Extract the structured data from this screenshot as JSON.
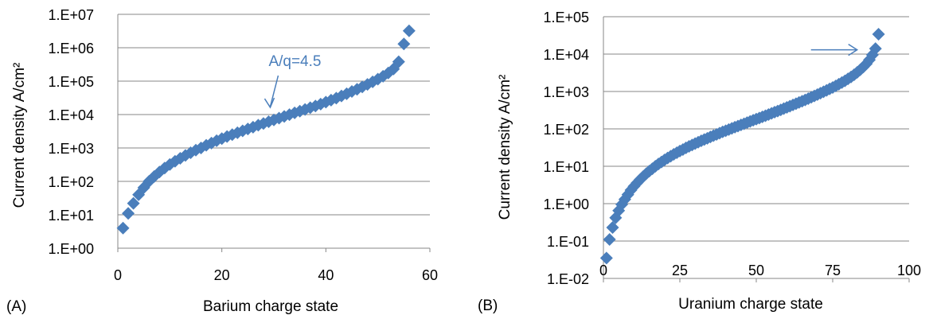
{
  "colors": {
    "series": "#4a7ebb",
    "grid": "#878787",
    "axis": "#878787"
  },
  "chart_data": [
    {
      "type": "scatter",
      "panel_label": "(A)",
      "xlabel": "Barium charge state",
      "ylabel": "Current density A/cm²",
      "xlim": [
        0,
        60
      ],
      "ylim": [
        1,
        10000000
      ],
      "yscale": "log",
      "grid": "horizontal",
      "x_ticks": [
        "0",
        "20",
        "40",
        "60"
      ],
      "y_ticks": [
        "1.E+00",
        "1.E+01",
        "1.E+02",
        "1.E+03",
        "1.E+04",
        "1.E+05",
        "1.E+06",
        "1.E+07"
      ],
      "annotation": {
        "text": "A/q=4.5",
        "x": 29,
        "y": 8000
      },
      "series": [
        {
          "marker": "diamond",
          "x": [
            1,
            2,
            3,
            4,
            5,
            6,
            7,
            8,
            9,
            10,
            11,
            12,
            13,
            14,
            15,
            16,
            17,
            18,
            19,
            20,
            21,
            22,
            23,
            24,
            25,
            26,
            27,
            28,
            29,
            30,
            31,
            32,
            33,
            34,
            35,
            36,
            37,
            38,
            39,
            40,
            41,
            42,
            43,
            44,
            45,
            46,
            47,
            48,
            49,
            50,
            51,
            52,
            53,
            54,
            55,
            56
          ],
          "y": [
            4,
            11,
            22,
            40,
            65,
            100,
            140,
            190,
            250,
            320,
            400,
            490,
            600,
            720,
            860,
            1000,
            1200,
            1400,
            1650,
            1900,
            2200,
            2500,
            2850,
            3250,
            3700,
            4200,
            4800,
            5400,
            6100,
            6900,
            7800,
            8800,
            9900,
            11200,
            12600,
            14200,
            16000,
            18000,
            20500,
            23500,
            27000,
            31000,
            36000,
            42000,
            49000,
            57000,
            67000,
            80000,
            95000,
            115000,
            140000,
            175000,
            230000,
            380000,
            1300000,
            3200000
          ]
        }
      ]
    },
    {
      "type": "scatter",
      "panel_label": "(B)",
      "xlabel": "Uranium charge state",
      "ylabel": "Current density A/cm²",
      "xlim": [
        0,
        100
      ],
      "ylim": [
        0.01,
        100000
      ],
      "yscale": "log",
      "grid": "horizontal",
      "x_ticks": [
        "0",
        "25",
        "50",
        "75",
        "100"
      ],
      "y_ticks": [
        "1.E-02",
        "1.E-01",
        "1.E+00",
        "1.E+01",
        "1.E+02",
        "1.E+03",
        "1.E+04",
        "1.E+05"
      ],
      "annotation": {
        "text": "",
        "x": 83,
        "y": 13000
      },
      "series": [
        {
          "marker": "diamond",
          "x": [
            1,
            2,
            3,
            4,
            5,
            6,
            7,
            8,
            9,
            10,
            11,
            12,
            13,
            14,
            15,
            16,
            17,
            18,
            19,
            20,
            21,
            22,
            23,
            24,
            25,
            26,
            27,
            28,
            29,
            30,
            31,
            32,
            33,
            34,
            35,
            36,
            37,
            38,
            39,
            40,
            41,
            42,
            43,
            44,
            45,
            46,
            47,
            48,
            49,
            50,
            51,
            52,
            53,
            54,
            55,
            56,
            57,
            58,
            59,
            60,
            61,
            62,
            63,
            64,
            65,
            66,
            67,
            68,
            69,
            70,
            71,
            72,
            73,
            74,
            75,
            76,
            77,
            78,
            79,
            80,
            81,
            82,
            83,
            84,
            85,
            86,
            87,
            88,
            89,
            90
          ],
          "y": [
            0.035,
            0.11,
            0.23,
            0.42,
            0.65,
            0.95,
            1.3,
            1.75,
            2.3,
            2.9,
            3.6,
            4.4,
            5.3,
            6.3,
            7.4,
            8.6,
            10,
            11.5,
            13,
            14.8,
            16.6,
            18.6,
            20.8,
            23,
            25.5,
            28,
            31,
            34,
            37,
            40.5,
            44,
            48,
            52,
            56,
            61,
            66,
            71,
            77,
            83,
            89,
            96,
            103,
            111,
            119,
            128,
            137,
            147,
            158,
            170,
            182,
            195,
            210,
            225,
            242,
            260,
            280,
            300,
            323,
            348,
            375,
            405,
            437,
            472,
            510,
            550,
            595,
            645,
            700,
            760,
            825,
            900,
            980,
            1070,
            1170,
            1280,
            1410,
            1560,
            1730,
            1930,
            2170,
            2450,
            2800,
            3250,
            3800,
            4500,
            5500,
            7000,
            9500,
            14000,
            34000
          ]
        }
      ]
    }
  ]
}
